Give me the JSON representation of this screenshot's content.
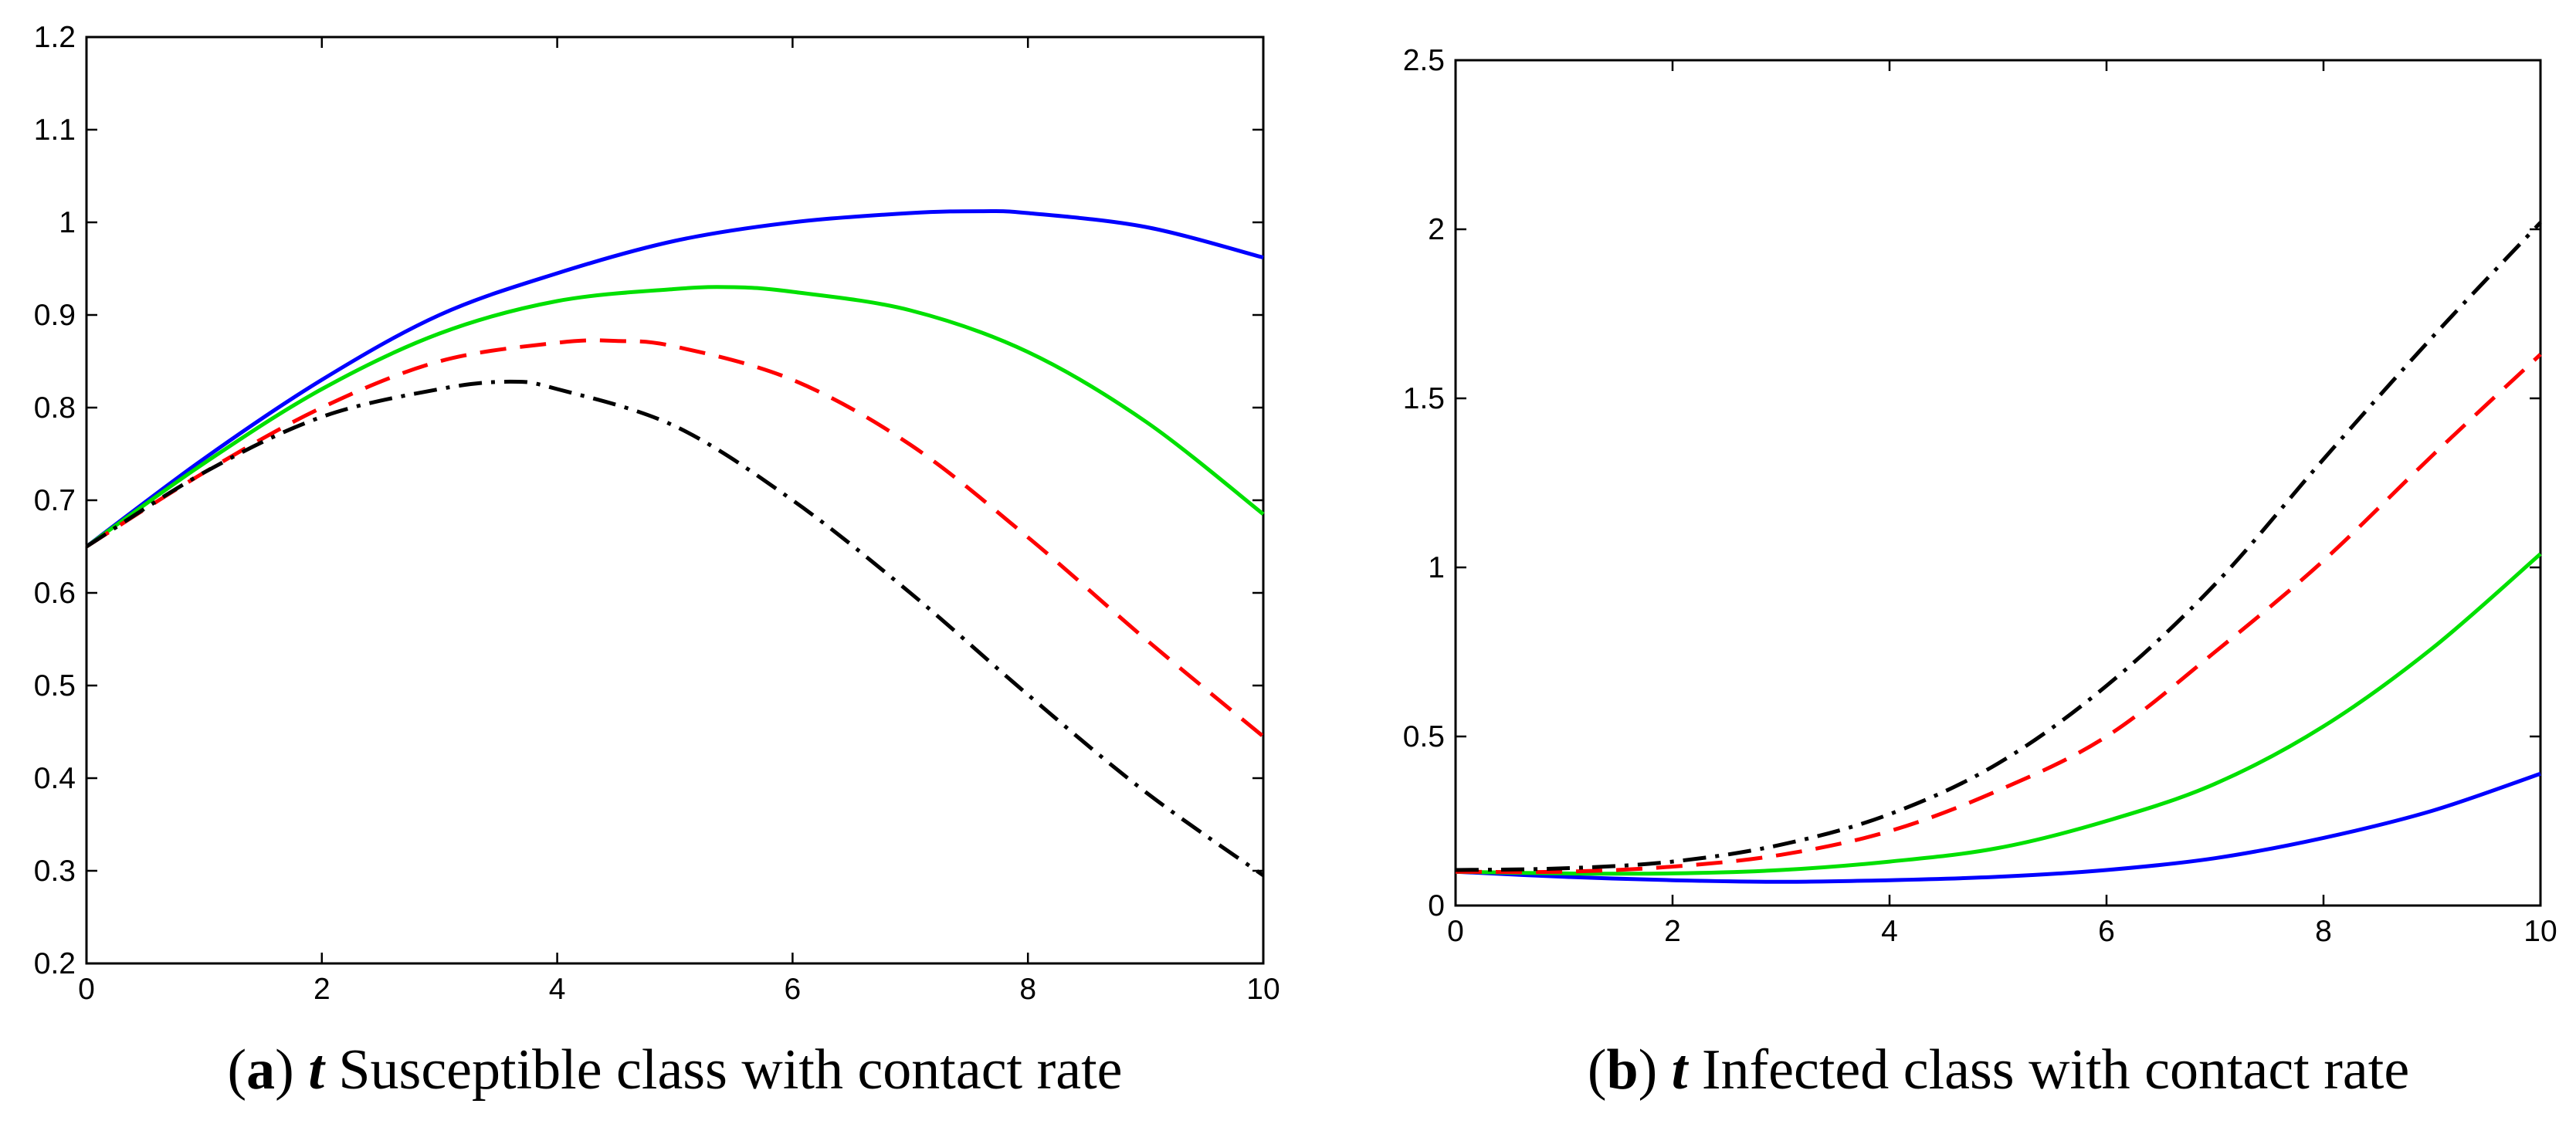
{
  "chart_data": [
    {
      "type": "line",
      "title": "",
      "xlabel": "",
      "ylabel": "",
      "xlim": [
        0,
        10
      ],
      "ylim": [
        0.2,
        1.2
      ],
      "xticks": [
        "0",
        "2",
        "4",
        "6",
        "8",
        "10"
      ],
      "yticks": [
        "0.2",
        "0.3",
        "0.4",
        "0.5",
        "0.6",
        "0.7",
        "0.8",
        "0.9",
        "1",
        "1.1",
        "1.2"
      ],
      "caption": {
        "label": "a",
        "var": "t",
        "text": "Susceptible class with contact rate"
      },
      "series": [
        {
          "name": "blue solid",
          "color": "#0000ff",
          "dash": "solid",
          "x": [
            0,
            1,
            2,
            3,
            4,
            5,
            6,
            7,
            7.6,
            8,
            9,
            10
          ],
          "y": [
            0.65,
            0.745,
            0.83,
            0.9,
            0.945,
            0.98,
            1.0,
            1.01,
            1.012,
            1.01,
            0.995,
            0.962
          ]
        },
        {
          "name": "green solid",
          "color": "#00e000",
          "dash": "solid",
          "x": [
            0,
            1,
            2,
            3,
            4,
            5,
            5.5,
            6,
            7,
            8,
            9,
            10
          ],
          "y": [
            0.65,
            0.74,
            0.82,
            0.88,
            0.915,
            0.928,
            0.93,
            0.925,
            0.905,
            0.86,
            0.785,
            0.685
          ]
        },
        {
          "name": "red dashed",
          "color": "#ff0000",
          "dash": "dashed",
          "x": [
            0,
            1,
            2,
            3,
            4,
            4.5,
            5,
            6,
            7,
            8,
            9,
            10
          ],
          "y": [
            0.65,
            0.73,
            0.8,
            0.85,
            0.87,
            0.872,
            0.866,
            0.83,
            0.76,
            0.66,
            0.55,
            0.445
          ]
        },
        {
          "name": "black dash-dot",
          "color": "#000000",
          "dash": "dashdot",
          "x": [
            0,
            1,
            2,
            3,
            3.6,
            4,
            5,
            6,
            7,
            8,
            9,
            10
          ],
          "y": [
            0.65,
            0.73,
            0.79,
            0.82,
            0.828,
            0.82,
            0.78,
            0.7,
            0.6,
            0.49,
            0.385,
            0.295
          ]
        }
      ]
    },
    {
      "type": "line",
      "title": "",
      "xlabel": "",
      "ylabel": "",
      "xlim": [
        0,
        10
      ],
      "ylim": [
        0,
        2.5
      ],
      "xticks": [
        "0",
        "2",
        "4",
        "6",
        "8",
        "10"
      ],
      "yticks": [
        "0",
        "0.5",
        "1",
        "1.5",
        "2",
        "2.5"
      ],
      "caption": {
        "label": "b",
        "var": "t",
        "text": "Infected class with contact rate"
      },
      "series": [
        {
          "name": "blue solid",
          "color": "#0000ff",
          "dash": "solid",
          "x": [
            0,
            1,
            2,
            3,
            4,
            5,
            6,
            7,
            8,
            9,
            10
          ],
          "y": [
            0.1,
            0.085,
            0.075,
            0.07,
            0.075,
            0.085,
            0.105,
            0.14,
            0.2,
            0.28,
            0.39
          ]
        },
        {
          "name": "green solid",
          "color": "#00e000",
          "dash": "solid",
          "x": [
            0,
            1,
            2,
            3,
            4,
            5,
            6,
            7,
            8,
            9,
            10
          ],
          "y": [
            0.1,
            0.095,
            0.095,
            0.105,
            0.13,
            0.17,
            0.25,
            0.36,
            0.53,
            0.76,
            1.04
          ]
        },
        {
          "name": "red dashed",
          "color": "#ff0000",
          "dash": "dashed",
          "x": [
            0,
            1,
            2,
            3,
            4,
            5,
            6,
            7,
            8,
            9,
            10
          ],
          "y": [
            0.1,
            0.1,
            0.115,
            0.15,
            0.22,
            0.34,
            0.5,
            0.75,
            1.02,
            1.33,
            1.63
          ]
        },
        {
          "name": "black dash-dot",
          "color": "#000000",
          "dash": "dashdot",
          "x": [
            0,
            1,
            2,
            3,
            4,
            5,
            6,
            7,
            8,
            9,
            10
          ],
          "y": [
            0.105,
            0.11,
            0.13,
            0.18,
            0.27,
            0.42,
            0.65,
            0.95,
            1.32,
            1.68,
            2.02
          ]
        }
      ]
    }
  ]
}
